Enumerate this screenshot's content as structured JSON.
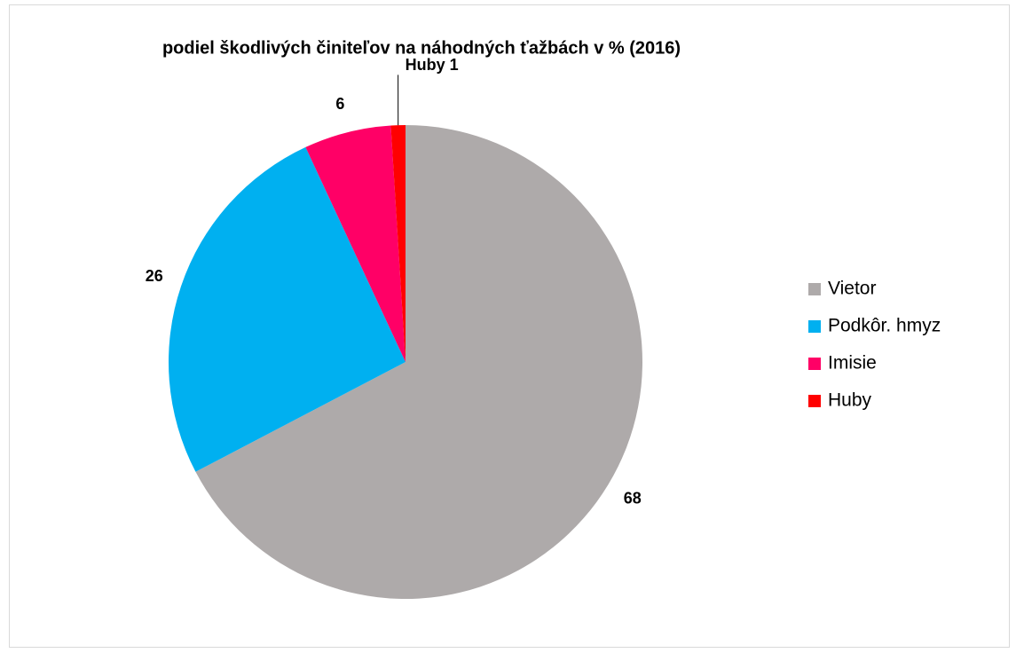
{
  "chart_data": {
    "type": "pie",
    "title": "podiel škodlivých činiteľov na náhodných ťažbách v % (2016)",
    "categories": [
      "Vietor",
      "Podkôr. hmyz",
      "Imisie",
      "Huby"
    ],
    "values": [
      68,
      26,
      6,
      1
    ],
    "value_labels": [
      "68",
      "26",
      "6",
      "Huby 1"
    ],
    "colors": [
      "#aeaaaa",
      "#00b0f0",
      "#ff0066",
      "#ff0000"
    ],
    "legend": "right"
  }
}
